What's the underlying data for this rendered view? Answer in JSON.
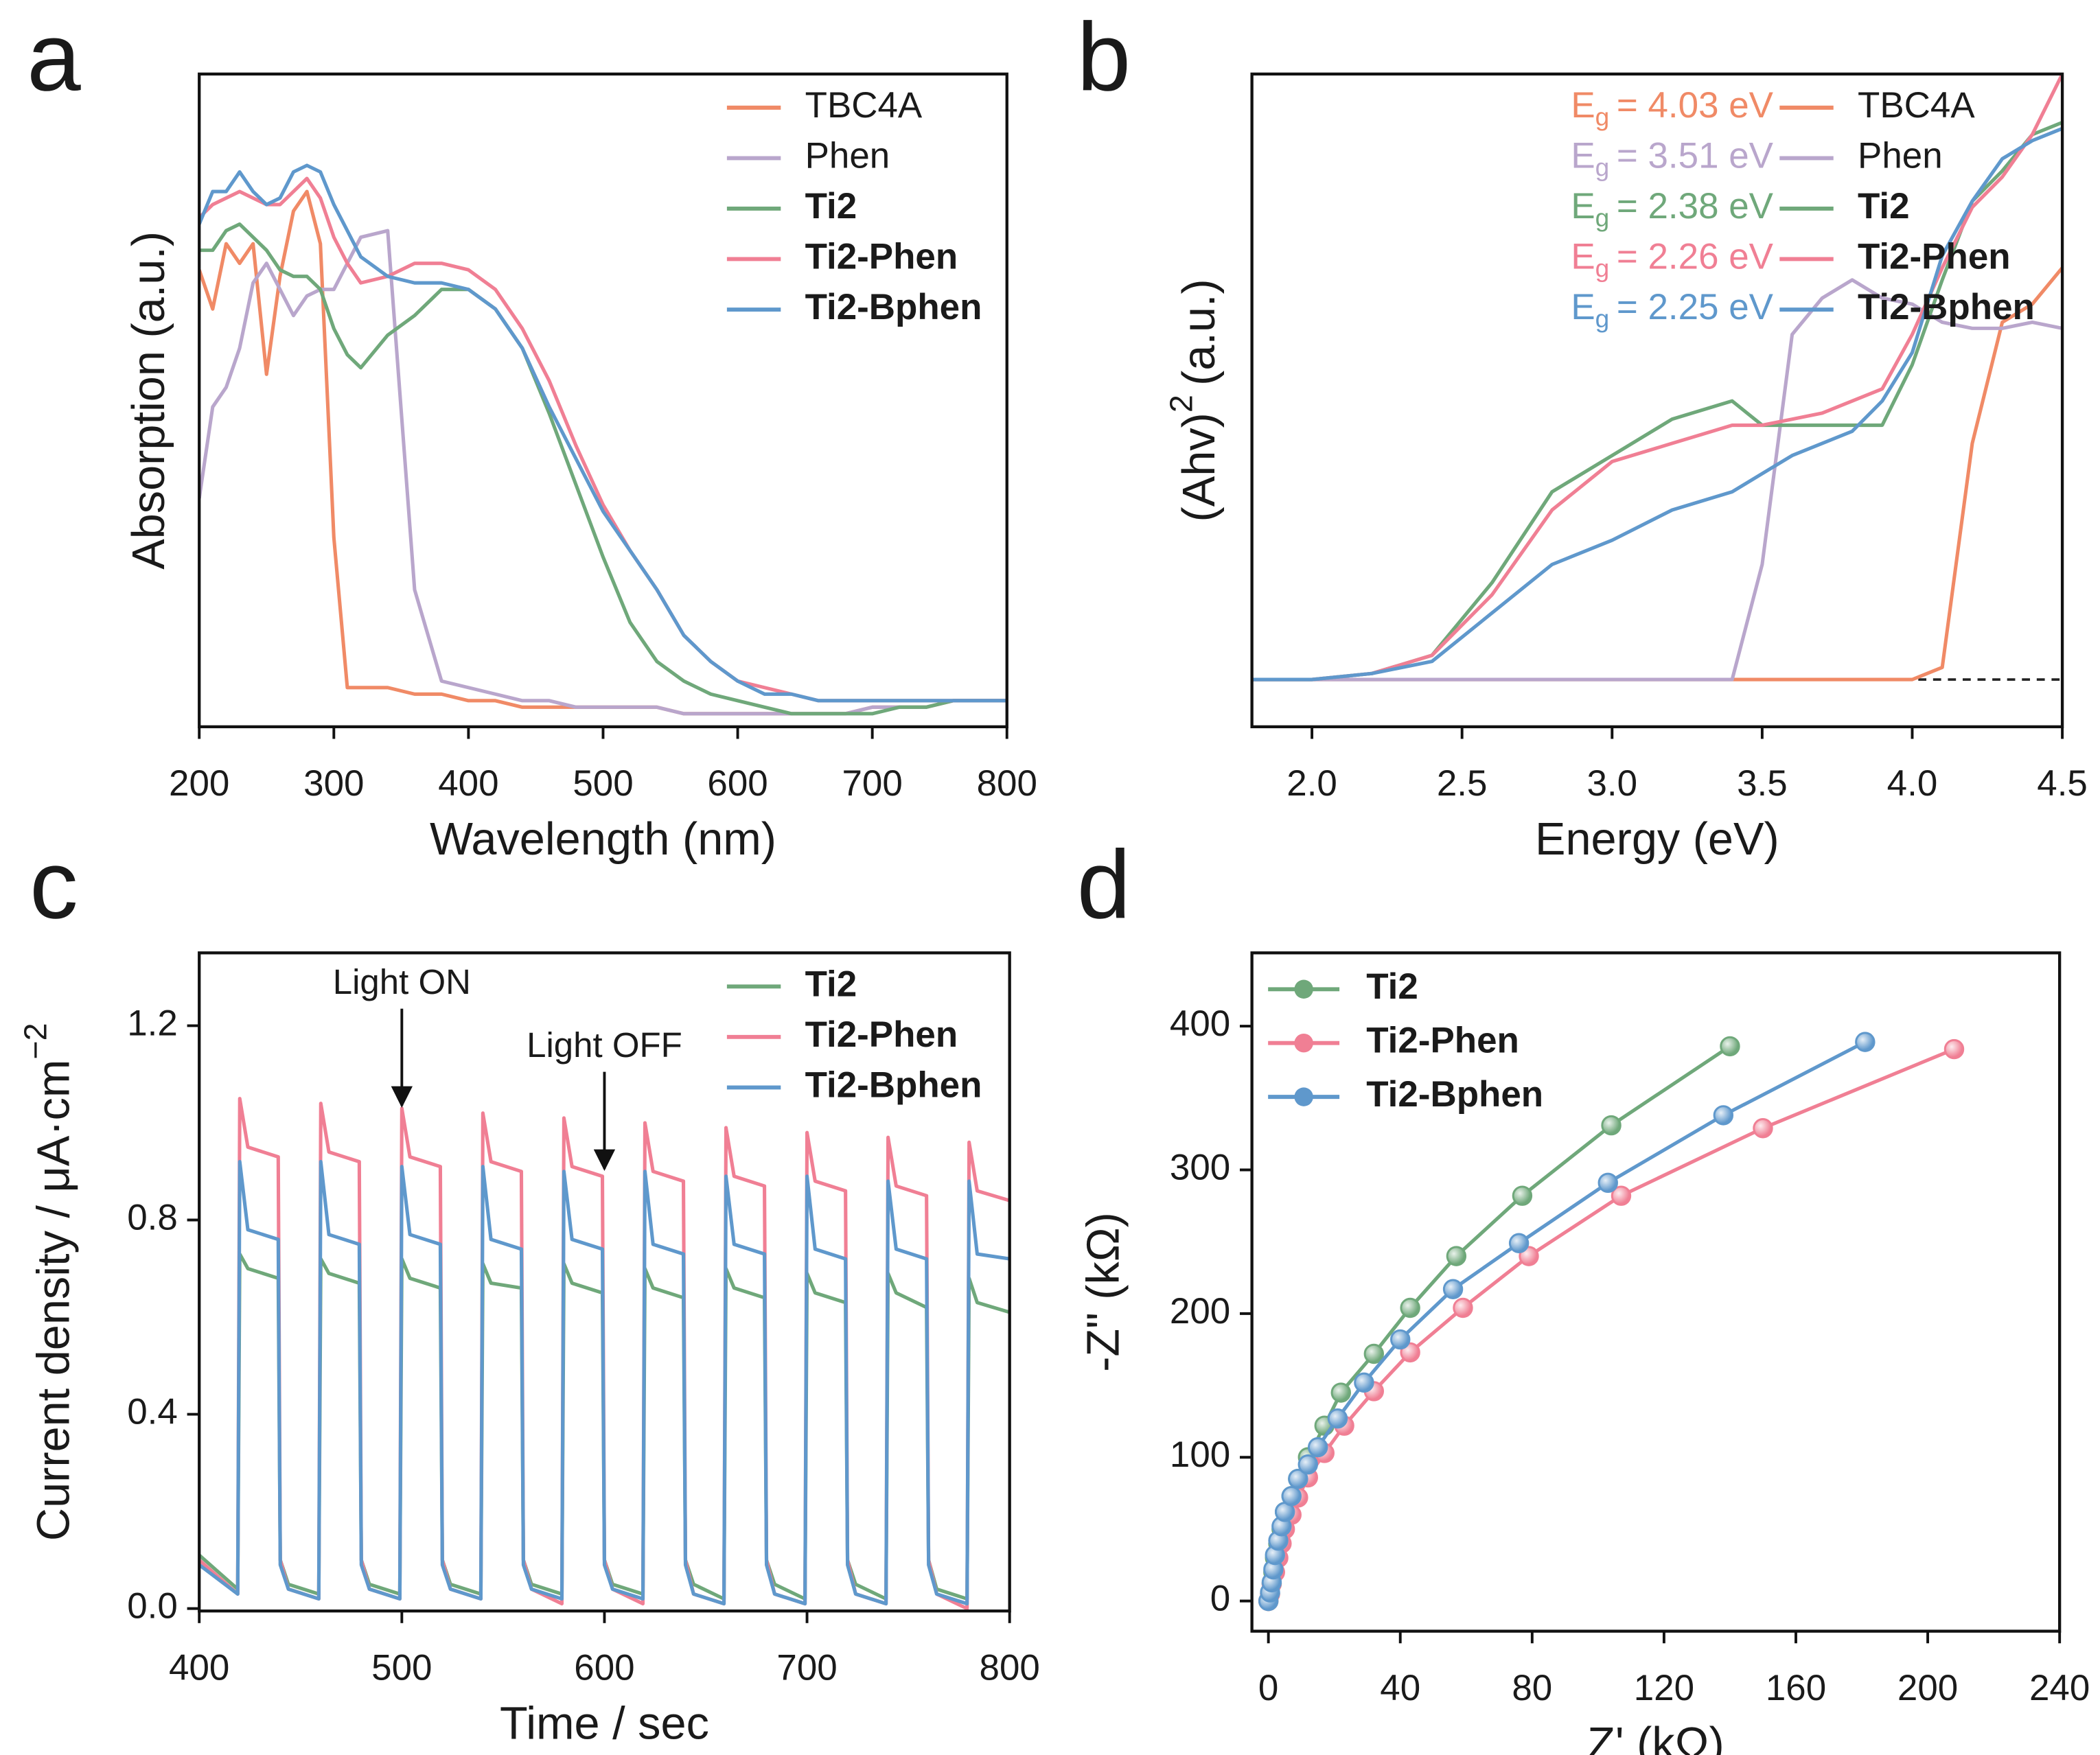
{
  "chart_data": [
    {
      "type": "line",
      "panel_label": "a",
      "x_label": "Wavelength (nm)",
      "y_label": "Absorption (a.u.)",
      "x": [
        200,
        210,
        220,
        230,
        240,
        250,
        260,
        270,
        280,
        290,
        300,
        310,
        320,
        340,
        360,
        380,
        400,
        420,
        440,
        460,
        480,
        500,
        520,
        540,
        560,
        580,
        600,
        620,
        640,
        660,
        680,
        700,
        720,
        740,
        760,
        780,
        800
      ],
      "xlim": [
        200,
        800
      ],
      "xticks": [
        200,
        300,
        400,
        500,
        600,
        700,
        800
      ],
      "ylim": [
        0,
        1
      ],
      "legend": "upper right",
      "series": [
        {
          "name": "TBC4A",
          "color": "#f08a66",
          "bold": false,
          "values": [
            0.7,
            0.64,
            0.74,
            0.71,
            0.74,
            0.54,
            0.69,
            0.79,
            0.82,
            0.74,
            0.29,
            0.06,
            0.06,
            0.06,
            0.05,
            0.05,
            0.04,
            0.04,
            0.03,
            0.03,
            0.03,
            0.03,
            0.03,
            0.03,
            0.02,
            0.02,
            0.02,
            0.02,
            0.02,
            0.02,
            0.02,
            0.03,
            0.03,
            0.03,
            0.04,
            0.04,
            0.04
          ]
        },
        {
          "name": "Phen",
          "color": "#b9a6cc",
          "bold": false,
          "values": [
            0.35,
            0.49,
            0.52,
            0.58,
            0.68,
            0.71,
            0.67,
            0.63,
            0.66,
            0.67,
            0.67,
            0.71,
            0.75,
            0.76,
            0.21,
            0.07,
            0.06,
            0.05,
            0.04,
            0.04,
            0.03,
            0.03,
            0.03,
            0.03,
            0.02,
            0.02,
            0.02,
            0.02,
            0.02,
            0.02,
            0.02,
            0.03,
            0.03,
            0.03,
            0.04,
            0.04,
            0.04
          ]
        },
        {
          "name": "Ti2",
          "color": "#6fa87a",
          "bold": true,
          "values": [
            0.73,
            0.73,
            0.76,
            0.77,
            0.75,
            0.73,
            0.7,
            0.69,
            0.69,
            0.67,
            0.61,
            0.57,
            0.55,
            0.6,
            0.63,
            0.67,
            0.67,
            0.64,
            0.58,
            0.48,
            0.37,
            0.26,
            0.16,
            0.1,
            0.07,
            0.05,
            0.04,
            0.03,
            0.02,
            0.02,
            0.02,
            0.02,
            0.03,
            0.03,
            0.04,
            0.04,
            0.04
          ]
        },
        {
          "name": "Ti2-Phen",
          "color": "#f07f94",
          "bold": true,
          "values": [
            0.78,
            0.8,
            0.81,
            0.82,
            0.81,
            0.8,
            0.8,
            0.82,
            0.84,
            0.81,
            0.75,
            0.71,
            0.68,
            0.69,
            0.71,
            0.71,
            0.7,
            0.67,
            0.61,
            0.53,
            0.43,
            0.34,
            0.27,
            0.21,
            0.14,
            0.1,
            0.07,
            0.06,
            0.05,
            0.04,
            0.04,
            0.04,
            0.04,
            0.04,
            0.04,
            0.04,
            0.04
          ]
        },
        {
          "name": "Ti2-Bphen",
          "color": "#5f98cc",
          "bold": true,
          "values": [
            0.77,
            0.82,
            0.82,
            0.85,
            0.82,
            0.8,
            0.81,
            0.85,
            0.86,
            0.85,
            0.8,
            0.76,
            0.72,
            0.69,
            0.68,
            0.68,
            0.67,
            0.64,
            0.58,
            0.49,
            0.41,
            0.33,
            0.27,
            0.21,
            0.14,
            0.1,
            0.07,
            0.05,
            0.05,
            0.04,
            0.04,
            0.04,
            0.04,
            0.04,
            0.04,
            0.04,
            0.04
          ]
        }
      ]
    },
    {
      "type": "line",
      "panel_label": "b",
      "x_label": "Energy (eV)",
      "y_label": {
        "text": "(Ahv)",
        "superscript": "2",
        "suffix": "(a.u.)"
      },
      "x": [
        1.8,
        2.0,
        2.2,
        2.4,
        2.6,
        2.8,
        3.0,
        3.2,
        3.4,
        3.5,
        3.6,
        3.7,
        3.8,
        3.9,
        4.0,
        4.1,
        4.2,
        4.3,
        4.4,
        4.5
      ],
      "xlim": [
        1.8,
        4.5
      ],
      "xticks": [
        {
          "value": 2,
          "label": "2.0"
        },
        2.5,
        {
          "value": 3,
          "label": "3.0"
        },
        3.5,
        {
          "value": 4,
          "label": "4.0"
        },
        4.5
      ],
      "ylim": [
        -0.078,
        1
      ],
      "legend": "upper right",
      "dashed_baseline": true,
      "series": [
        {
          "name": "TBC4A",
          "color": "#f08a66",
          "bold": false,
          "values": [
            0,
            0,
            0,
            0,
            0,
            0,
            0,
            0,
            0,
            0,
            0,
            0,
            0,
            0,
            0,
            0.02,
            0.39,
            0.59,
            0.62,
            0.68
          ]
        },
        {
          "name": "Phen",
          "color": "#b9a6cc",
          "bold": false,
          "values": [
            0,
            0,
            0,
            0,
            0,
            0,
            0,
            0,
            0,
            0.19,
            0.57,
            0.63,
            0.66,
            0.63,
            0.62,
            0.59,
            0.58,
            0.58,
            0.59,
            0.58
          ]
        },
        {
          "name": "Ti2",
          "color": "#6fa87a",
          "bold": true,
          "values": [
            0,
            0,
            0.01,
            0.04,
            0.16,
            0.31,
            0.37,
            0.43,
            0.46,
            0.42,
            0.42,
            0.42,
            0.42,
            0.42,
            0.52,
            0.66,
            0.79,
            0.84,
            0.9,
            0.92
          ]
        },
        {
          "name": "Ti2-Phen",
          "color": "#f07f94",
          "bold": true,
          "values": [
            0,
            0,
            0.01,
            0.04,
            0.14,
            0.28,
            0.36,
            0.39,
            0.42,
            0.42,
            0.43,
            0.44,
            0.46,
            0.48,
            0.57,
            0.68,
            0.78,
            0.83,
            0.9,
            1.0
          ]
        },
        {
          "name": "Ti2-Bphen",
          "color": "#5f98cc",
          "bold": true,
          "values": [
            0,
            0,
            0.01,
            0.03,
            0.11,
            0.19,
            0.23,
            0.28,
            0.31,
            0.34,
            0.37,
            0.39,
            0.41,
            0.46,
            0.54,
            0.7,
            0.79,
            0.86,
            0.89,
            0.91
          ]
        }
      ],
      "annotations": [
        {
          "text": "E",
          "subscript": "g",
          "suffix": "= 4.03 eV",
          "color": "#f08a66"
        },
        {
          "text": "E",
          "subscript": "g",
          "suffix": "= 3.51 eV",
          "color": "#b9a6cc"
        },
        {
          "text": "E",
          "subscript": "g",
          "suffix": "= 2.38 eV",
          "color": "#6fa87a"
        },
        {
          "text": "E",
          "subscript": "g",
          "suffix": "= 2.26 eV",
          "color": "#f07f94"
        },
        {
          "text": "E",
          "subscript": "g",
          "suffix": "= 2.25 eV",
          "color": "#5f98cc"
        }
      ]
    },
    {
      "type": "line",
      "panel_label": "c",
      "x_label": "Time / sec",
      "y_label": {
        "text": "Current density / μA·cm",
        "superscript": "−2"
      },
      "x": [
        400,
        419,
        420,
        424,
        439,
        440,
        444,
        459,
        460,
        464,
        479,
        480,
        484,
        499,
        500,
        504,
        519,
        520,
        524,
        539,
        540,
        544,
        559,
        560,
        564,
        579,
        580,
        584,
        599,
        600,
        604,
        619,
        620,
        624,
        639,
        640,
        644,
        659,
        660,
        664,
        679,
        680,
        684,
        699,
        700,
        704,
        719,
        720,
        724,
        739,
        740,
        744,
        759,
        760,
        764,
        779,
        780,
        784,
        800
      ],
      "xlim": [
        400,
        800
      ],
      "xticks": [
        400,
        500,
        600,
        700,
        800
      ],
      "ylim": [
        -0.005,
        1.35
      ],
      "yticks": [
        {
          "value": 0,
          "label": "0.0"
        },
        0.4,
        0.8,
        1.2
      ],
      "legend": "upper right",
      "series": [
        {
          "name": "Ti2",
          "color": "#6fa87a",
          "bold": true,
          "values": [
            0.11,
            0.04,
            0.73,
            0.7,
            0.68,
            0.1,
            0.05,
            0.03,
            0.72,
            0.69,
            0.67,
            0.1,
            0.05,
            0.03,
            0.72,
            0.68,
            0.66,
            0.1,
            0.05,
            0.03,
            0.71,
            0.67,
            0.66,
            0.1,
            0.05,
            0.03,
            0.71,
            0.67,
            0.65,
            0.1,
            0.05,
            0.03,
            0.7,
            0.66,
            0.64,
            0.1,
            0.05,
            0.02,
            0.7,
            0.66,
            0.64,
            0.1,
            0.05,
            0.02,
            0.69,
            0.65,
            0.63,
            0.1,
            0.05,
            0.02,
            0.69,
            0.65,
            0.62,
            0.1,
            0.04,
            0.02,
            0.68,
            0.63,
            0.61
          ]
        },
        {
          "name": "Ti2-Phen",
          "color": "#f07f94",
          "bold": true,
          "values": [
            0.1,
            0.03,
            1.05,
            0.95,
            0.93,
            0.1,
            0.04,
            0.02,
            1.04,
            0.94,
            0.92,
            0.1,
            0.04,
            0.02,
            1.03,
            0.93,
            0.91,
            0.1,
            0.04,
            0.02,
            1.02,
            0.92,
            0.9,
            0.1,
            0.04,
            0.01,
            1.01,
            0.91,
            0.89,
            0.1,
            0.04,
            0.01,
            1.0,
            0.9,
            0.88,
            0.1,
            0.03,
            0.01,
            0.99,
            0.89,
            0.87,
            0.1,
            0.03,
            0.01,
            0.98,
            0.88,
            0.86,
            0.1,
            0.03,
            0.01,
            0.97,
            0.87,
            0.85,
            0.1,
            0.03,
            0.0,
            0.96,
            0.86,
            0.84
          ]
        },
        {
          "name": "Ti2-Bphen",
          "color": "#5f98cc",
          "bold": true,
          "values": [
            0.09,
            0.03,
            0.92,
            0.78,
            0.76,
            0.09,
            0.04,
            0.02,
            0.92,
            0.77,
            0.75,
            0.09,
            0.04,
            0.02,
            0.91,
            0.77,
            0.75,
            0.09,
            0.04,
            0.02,
            0.91,
            0.76,
            0.74,
            0.09,
            0.04,
            0.02,
            0.9,
            0.76,
            0.74,
            0.09,
            0.04,
            0.02,
            0.9,
            0.75,
            0.73,
            0.09,
            0.03,
            0.01,
            0.89,
            0.75,
            0.73,
            0.09,
            0.03,
            0.01,
            0.89,
            0.74,
            0.72,
            0.09,
            0.03,
            0.01,
            0.88,
            0.74,
            0.72,
            0.09,
            0.03,
            0.01,
            0.88,
            0.73,
            0.72
          ]
        }
      ],
      "annotations": [
        {
          "text": "Light ON",
          "x": 500,
          "y": 1.03
        },
        {
          "text": "Light OFF",
          "x": 600,
          "y": 0.9
        }
      ]
    },
    {
      "type": "line",
      "markers": true,
      "panel_label": "d",
      "x_label": "Z' (kΩ)",
      "y_label": "-Z\" (kΩ)",
      "xlim": [
        -5,
        240
      ],
      "xticks": [
        0,
        40,
        80,
        120,
        160,
        200,
        240
      ],
      "ylim": [
        -21,
        451
      ],
      "yticks": [
        0,
        100,
        200,
        300,
        400
      ],
      "legend": "upper left",
      "series": [
        {
          "name": "Ti2",
          "color": "#6fa87a",
          "bold": true,
          "x": [
            0,
            0.5,
            1,
            1.5,
            2,
            3,
            4,
            5,
            7,
            9,
            12,
            17,
            22,
            32,
            43,
            57,
            77,
            104,
            140
          ],
          "values": [
            0,
            5,
            12,
            20,
            30,
            40,
            50,
            62,
            73,
            85,
            100,
            122,
            145,
            172,
            204,
            240,
            282,
            331,
            386
          ]
        },
        {
          "name": "Ti2-Phen",
          "color": "#f07f94",
          "bold": true,
          "x": [
            0,
            0.5,
            1,
            2,
            3,
            4,
            5,
            7,
            9,
            12,
            17,
            23,
            32,
            43,
            59,
            79,
            107,
            150,
            208
          ],
          "values": [
            0,
            5,
            12,
            20,
            30,
            40,
            50,
            60,
            72,
            86,
            103,
            122,
            146,
            173,
            204,
            240,
            282,
            329,
            384
          ]
        },
        {
          "name": "Ti2-Bphen",
          "color": "#5f98cc",
          "bold": true,
          "x": [
            0,
            0.5,
            1,
            1.5,
            2,
            3,
            4,
            5,
            7,
            9,
            12,
            15,
            21,
            29,
            40,
            56,
            76,
            103,
            138,
            181
          ],
          "values": [
            0,
            6,
            13,
            22,
            32,
            42,
            52,
            62,
            73,
            85,
            95,
            107,
            127,
            152,
            182,
            217,
            249,
            291,
            338,
            389
          ]
        }
      ]
    }
  ]
}
